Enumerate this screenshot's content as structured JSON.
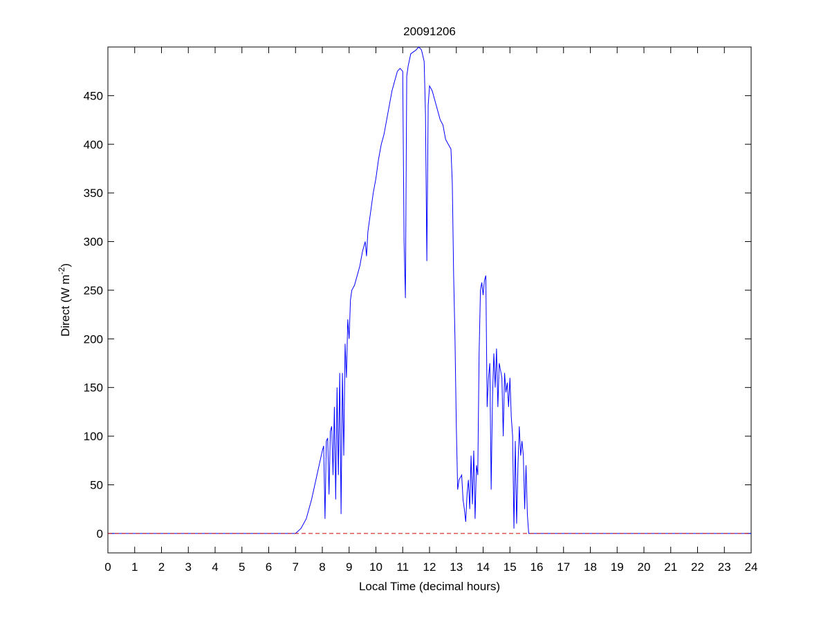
{
  "chart_data": {
    "type": "line",
    "title": "20091206",
    "xlabel": "Local Time (decimal hours)",
    "ylabel": [
      "Direct (W m",
      "-2",
      ")"
    ],
    "x": [
      0,
      7.0,
      7.2,
      7.4,
      7.6,
      7.8,
      8.0,
      8.05,
      8.1,
      8.15,
      8.2,
      8.25,
      8.3,
      8.35,
      8.4,
      8.45,
      8.5,
      8.55,
      8.6,
      8.65,
      8.7,
      8.75,
      8.8,
      8.85,
      8.9,
      8.95,
      9.0,
      9.05,
      9.1,
      9.2,
      9.3,
      9.4,
      9.5,
      9.6,
      9.65,
      9.7,
      9.8,
      9.9,
      10.0,
      10.1,
      10.2,
      10.3,
      10.4,
      10.5,
      10.6,
      10.7,
      10.8,
      10.9,
      11.0,
      11.05,
      11.1,
      11.15,
      11.2,
      11.3,
      11.4,
      11.5,
      11.6,
      11.7,
      11.8,
      11.85,
      11.9,
      11.95,
      12.0,
      12.1,
      12.2,
      12.3,
      12.4,
      12.5,
      12.6,
      12.7,
      12.8,
      12.85,
      12.9,
      12.95,
      13.0,
      13.05,
      13.1,
      13.2,
      13.25,
      13.3,
      13.35,
      13.4,
      13.45,
      13.5,
      13.55,
      13.6,
      13.65,
      13.7,
      13.75,
      13.8,
      13.85,
      13.9,
      13.95,
      14.0,
      14.05,
      14.1,
      14.15,
      14.2,
      14.25,
      14.3,
      14.35,
      14.4,
      14.45,
      14.5,
      14.55,
      14.6,
      14.7,
      14.75,
      14.8,
      14.85,
      14.9,
      14.95,
      15.0,
      15.05,
      15.1,
      15.15,
      15.2,
      15.25,
      15.3,
      15.35,
      15.4,
      15.45,
      15.5,
      15.55,
      15.6,
      15.65,
      15.7,
      24
    ],
    "series": [
      {
        "color": "#0000ff",
        "values": [
          0,
          0,
          5,
          15,
          35,
          60,
          85,
          90,
          15,
          95,
          98,
          40,
          105,
          110,
          60,
          130,
          35,
          150,
          60,
          165,
          20,
          165,
          80,
          195,
          160,
          220,
          200,
          240,
          250,
          255,
          265,
          275,
          290,
          300,
          285,
          310,
          330,
          350,
          365,
          385,
          400,
          410,
          425,
          440,
          455,
          465,
          475,
          478,
          475,
          300,
          242,
          470,
          480,
          493,
          495,
          497,
          500,
          497,
          485,
          430,
          280,
          440,
          460,
          455,
          445,
          435,
          425,
          420,
          405,
          400,
          395,
          360,
          265,
          200,
          110,
          45,
          55,
          60,
          35,
          25,
          12,
          40,
          55,
          25,
          80,
          30,
          85,
          15,
          70,
          60,
          185,
          250,
          258,
          245,
          260,
          265,
          130,
          160,
          175,
          45,
          140,
          185,
          150,
          190,
          130,
          175,
          160,
          100,
          165,
          145,
          155,
          130,
          160,
          120,
          100,
          5,
          95,
          10,
          70,
          110,
          80,
          95,
          80,
          25,
          70,
          20,
          0,
          0
        ]
      }
    ],
    "reference_line": {
      "value": 0,
      "color": "#cc0000"
    },
    "xlim": [
      0,
      24
    ],
    "xticks": [
      0,
      1,
      2,
      3,
      4,
      5,
      6,
      7,
      8,
      9,
      10,
      11,
      12,
      13,
      14,
      15,
      16,
      17,
      18,
      19,
      20,
      21,
      22,
      23,
      24
    ],
    "ylim": [
      -20,
      500
    ],
    "yticks": [
      0,
      50,
      100,
      150,
      200,
      250,
      300,
      350,
      400,
      450
    ]
  }
}
